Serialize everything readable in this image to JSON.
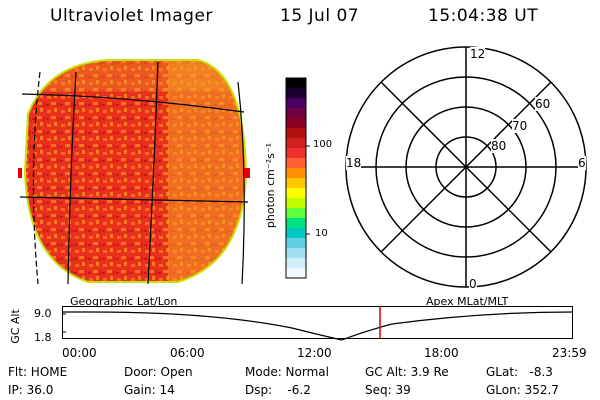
{
  "header": {
    "instrument": "Ultraviolet Imager",
    "date": "15 Jul 07",
    "time": "15:04:38 UT"
  },
  "colorbar": {
    "unit_label": "photon cm⁻²s⁻¹",
    "tick_100": "100",
    "tick_10": "10",
    "colors": [
      "#000000",
      "#1a0030",
      "#4a0060",
      "#700040",
      "#8b0020",
      "#b01010",
      "#d02020",
      "#ee3030",
      "#ff6030",
      "#ff9000",
      "#ffc800",
      "#ffff00",
      "#c0ff00",
      "#60ff40",
      "#00e080",
      "#00c8c0",
      "#60d0e0",
      "#a0e0f0",
      "#d0f0f8",
      "#f0f8ff"
    ]
  },
  "polar_grid": {
    "mlt_labels": {
      "top": "12",
      "left": "18",
      "right": "6",
      "bottom": "0"
    },
    "lat_labels": [
      "80",
      "70",
      "60"
    ]
  },
  "panel_titles": {
    "left": "Geographic Lat/Lon",
    "right": "Apex MLat/MLT"
  },
  "orbit_plot": {
    "axis_title": "GC Alt",
    "y_ticks": [
      "9.0",
      "1.8"
    ],
    "time_ticks": [
      "00:00",
      "06:00",
      "12:00",
      "18:00",
      "23:59"
    ],
    "current_time_color": "#e00000"
  },
  "status": {
    "row1": [
      {
        "key": "flt",
        "text": "Flt: HOME"
      },
      {
        "key": "door",
        "text": "Door: Open"
      },
      {
        "key": "mode",
        "text": "Mode: Normal"
      },
      {
        "key": "gcalt",
        "text": "GC Alt: 3.9 Re"
      },
      {
        "key": "glat",
        "text": "GLat:   -8.3"
      }
    ],
    "row2": [
      {
        "key": "ip",
        "text": "IP: 36.0"
      },
      {
        "key": "gain",
        "text": "Gain: 14"
      },
      {
        "key": "dsp",
        "text": "Dsp:    -6.2"
      },
      {
        "key": "seq",
        "text": "Seq: 39"
      },
      {
        "key": "glon",
        "text": "GLon: 352.7"
      }
    ]
  }
}
